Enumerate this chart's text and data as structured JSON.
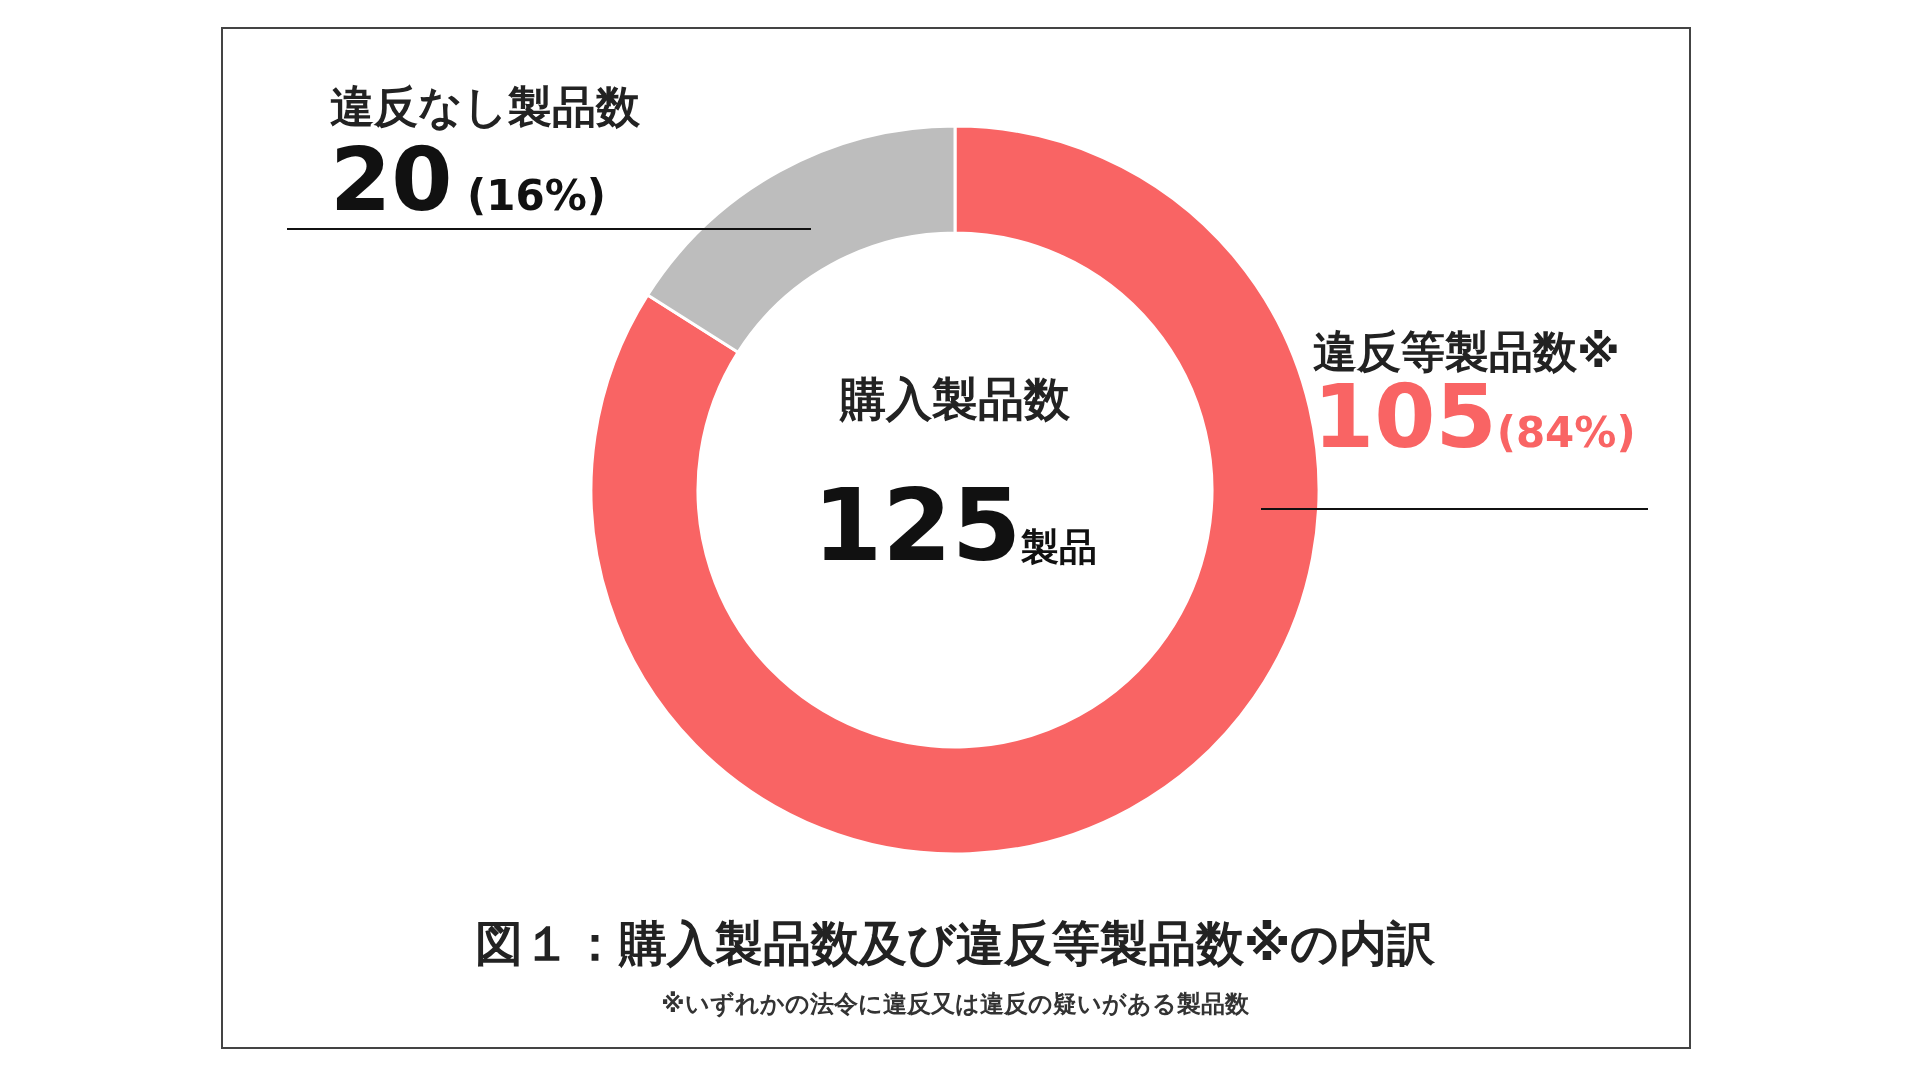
{
  "chart_data": {
    "type": "donut",
    "title": "図１：購入製品数及び違反等製品数※の内訳",
    "categories": [
      "違反等製品数※",
      "違反なし製品数"
    ],
    "values": [
      105,
      20
    ],
    "colors": [
      "#f96464",
      "#bdbdbd"
    ],
    "value_labels": [
      "105(84%)",
      "20 (16%)"
    ],
    "annotations": [
      "購入製品数",
      "125製品",
      "※いずれかの法令に違反又は違反の疑いがある製品数"
    ]
  }
}
